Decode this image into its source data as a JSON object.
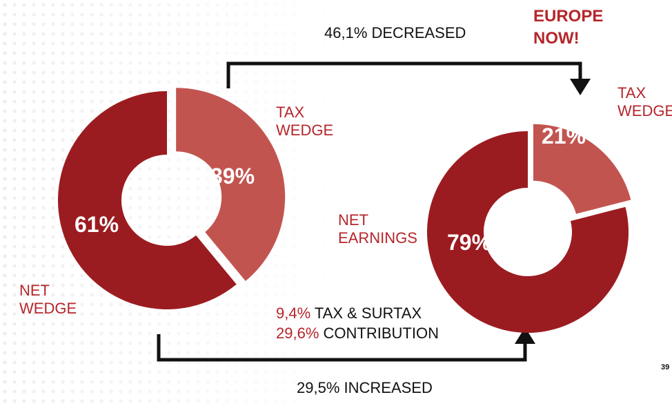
{
  "chart_data": [
    {
      "type": "pie",
      "categories": [
        "TAX WEDGE",
        "NET WEDGE"
      ],
      "values": [
        39,
        61
      ],
      "value_labels": [
        "39%",
        "61%"
      ],
      "colors": [
        "#c25450",
        "#9b1c20"
      ],
      "hole": true
    },
    {
      "type": "pie",
      "categories": [
        "TAX WEDGE",
        "NET EARNINGS"
      ],
      "values": [
        21,
        79
      ],
      "value_labels": [
        "21%",
        "79%"
      ],
      "colors": [
        "#c25450",
        "#9b1c20"
      ],
      "hole": true
    }
  ],
  "annotations": {
    "decreased": "46,1% DECREASED",
    "europe": "EUROPE NOW!",
    "increased": "29,5% INCREASED",
    "tax_pct": "9,4%",
    "tax_text": "TAX & SURTAX",
    "contrib_pct": "29,6%",
    "contrib_text": "CONTRIBUTION",
    "cut": "39"
  }
}
